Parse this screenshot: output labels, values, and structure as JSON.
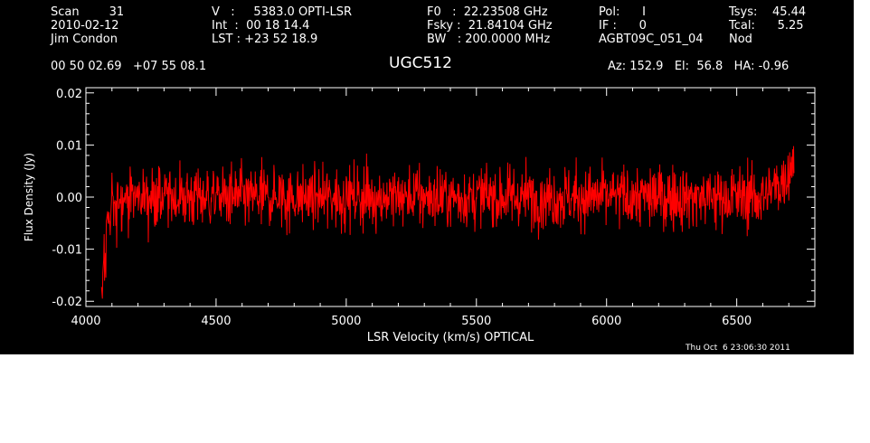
{
  "header": {
    "col1": [
      "Scan        31",
      "2010-02-12",
      "Jim Condon"
    ],
    "col2": [
      "V   :     5383.0 OPTI-LSR",
      "Int  :  00 18 14.4",
      "LST : +23 52 18.9"
    ],
    "col3": [
      "F0   :  22.23508 GHz",
      "Fsky :  21.84104 GHz",
      "BW   : 200.0000 MHz"
    ],
    "col4": [
      "Pol:      I",
      "IF :      0",
      "AGBT09C_051_04"
    ],
    "col4b": [
      "",
      "",
      "Nod"
    ],
    "col5": [
      "Tsys:    45.44",
      "Tcal:      5.25",
      ""
    ],
    "coords": "00 50 02.69   +07 55 08.1",
    "source": "UGC512",
    "azel": "Az: 152.9   El:  56.8   HA: -0.96",
    "timestamp": "Thu Oct  6 23:06:30 2011"
  },
  "colors": {
    "background": "#000000",
    "axes": "#ffffff",
    "trace": "#ff0000"
  },
  "chart_data": {
    "type": "line",
    "title": "UGC512",
    "xlabel": "LSR Velocity (km/s) OPTICAL",
    "ylabel": "Flux Density (Jy)",
    "xlim": [
      4000,
      6800
    ],
    "ylim": [
      -0.021,
      0.021
    ],
    "xticks": [
      4000,
      4500,
      5000,
      5500,
      6000,
      6500
    ],
    "xtick_labels": [
      "4000",
      "4500",
      "5000",
      "5500",
      "6000",
      "6500"
    ],
    "yticks": [
      -0.02,
      -0.01,
      0.0,
      0.01,
      0.02
    ],
    "ytick_labels": [
      "-0.02",
      "-0.01",
      "0.00",
      "0.01",
      "0.02"
    ],
    "grid": false,
    "series": [
      {
        "style": "noisy spectrum",
        "x_range": [
          4060,
          6720
        ],
        "baseline": 0.0,
        "noise_rms_jy": 0.003,
        "envelope": {
          "x": [
            4060,
            4070,
            4080,
            4100,
            4130,
            4200,
            5000,
            6000,
            6600,
            6650,
            6690,
            6720
          ],
          "y": [
            -0.017,
            -0.012,
            -0.006,
            -0.002,
            0.0,
            0.0,
            0.0,
            0.0,
            0.0,
            0.002,
            0.004,
            0.008
          ]
        }
      }
    ]
  }
}
